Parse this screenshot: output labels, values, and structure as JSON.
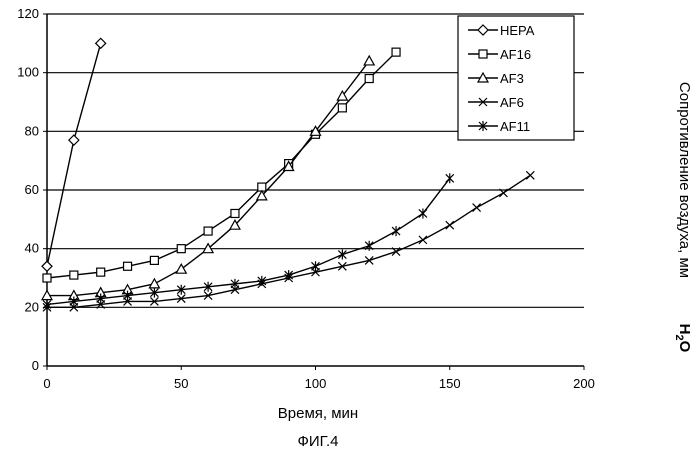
{
  "chart_data": {
    "type": "line",
    "xlabel": "Время, мин",
    "ylabel": "Сопротивление воздуха, мм",
    "ylabel_unit": "H",
    "ylabel_unit_sub": "2",
    "ylabel_unit_tail": "O",
    "caption": "ФИГ.4",
    "xlim": [
      0,
      200
    ],
    "ylim": [
      0,
      120
    ],
    "xticks": [
      "0",
      "50",
      "100",
      "150",
      "200"
    ],
    "yticks": [
      "0",
      "20",
      "40",
      "60",
      "80",
      "100",
      "120"
    ],
    "grid": "horizontal",
    "legend_position": "top-right",
    "series": [
      {
        "name": "HEPA",
        "marker": "diamond",
        "x": [
          0,
          10,
          20
        ],
        "y": [
          34,
          77,
          110
        ]
      },
      {
        "name": "AF16",
        "marker": "square",
        "x": [
          0,
          10,
          20,
          30,
          40,
          50,
          60,
          70,
          80,
          90,
          100,
          110,
          120,
          130
        ],
        "y": [
          30,
          31,
          32,
          34,
          36,
          40,
          46,
          52,
          61,
          69,
          79,
          88,
          98,
          107
        ]
      },
      {
        "name": "AF3",
        "marker": "triangle",
        "x": [
          0,
          10,
          20,
          30,
          40,
          50,
          60,
          70,
          80,
          90,
          100,
          110,
          120
        ],
        "y": [
          24,
          24,
          25,
          26,
          28,
          33,
          40,
          48,
          58,
          68,
          80,
          92,
          104
        ]
      },
      {
        "name": "AF6",
        "marker": "x",
        "x": [
          0,
          10,
          20,
          30,
          40,
          50,
          60,
          70,
          80,
          90,
          100,
          110,
          120,
          130,
          140,
          150,
          160,
          170,
          180
        ],
        "y": [
          20,
          20,
          21,
          22,
          22,
          23,
          24,
          26,
          28,
          30,
          32,
          34,
          36,
          39,
          43,
          48,
          54,
          59,
          65
        ]
      },
      {
        "name": "AF11",
        "marker": "star",
        "x": [
          0,
          10,
          20,
          30,
          40,
          50,
          60,
          70,
          80,
          90,
          100,
          110,
          120,
          130,
          140,
          150
        ],
        "y": [
          21,
          22,
          23,
          24,
          25,
          26,
          27,
          28,
          29,
          31,
          34,
          38,
          41,
          46,
          52,
          64
        ]
      }
    ]
  }
}
